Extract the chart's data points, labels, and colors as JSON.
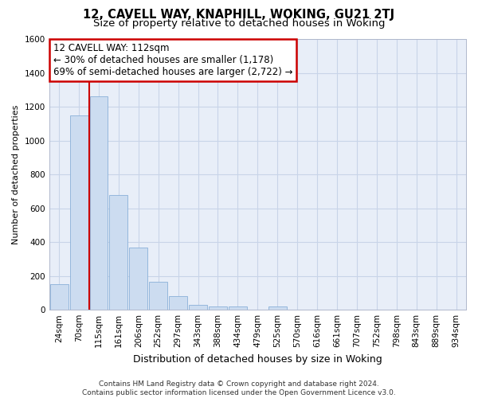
{
  "title": "12, CAVELL WAY, KNAPHILL, WOKING, GU21 2TJ",
  "subtitle": "Size of property relative to detached houses in Woking",
  "xlabel": "Distribution of detached houses by size in Woking",
  "ylabel": "Number of detached properties",
  "categories": [
    "24sqm",
    "70sqm",
    "115sqm",
    "161sqm",
    "206sqm",
    "252sqm",
    "297sqm",
    "343sqm",
    "388sqm",
    "434sqm",
    "479sqm",
    "525sqm",
    "570sqm",
    "616sqm",
    "661sqm",
    "707sqm",
    "752sqm",
    "798sqm",
    "843sqm",
    "889sqm",
    "934sqm"
  ],
  "values": [
    150,
    1150,
    1260,
    680,
    370,
    165,
    80,
    30,
    20,
    20,
    0,
    20,
    0,
    0,
    0,
    0,
    0,
    0,
    0,
    0,
    0
  ],
  "bar_color": "#ccdcf0",
  "bar_edge_color": "#8ab0d8",
  "vline_after_index": 1,
  "vline_color": "#cc0000",
  "annotation_line1": "12 CAVELL WAY: 112sqm",
  "annotation_line2": "← 30% of detached houses are smaller (1,178)",
  "annotation_line3": "69% of semi-detached houses are larger (2,722) →",
  "annotation_box_color": "#ffffff",
  "annotation_box_edge": "#cc0000",
  "ylim": [
    0,
    1600
  ],
  "yticks": [
    0,
    200,
    400,
    600,
    800,
    1000,
    1200,
    1400,
    1600
  ],
  "grid_color": "#c8d4e8",
  "background_color": "#e8eef8",
  "footer_line1": "Contains HM Land Registry data © Crown copyright and database right 2024.",
  "footer_line2": "Contains public sector information licensed under the Open Government Licence v3.0.",
  "title_fontsize": 10.5,
  "subtitle_fontsize": 9.5,
  "xlabel_fontsize": 9,
  "ylabel_fontsize": 8,
  "tick_fontsize": 7.5,
  "annotation_fontsize": 8.5,
  "footer_fontsize": 6.5
}
